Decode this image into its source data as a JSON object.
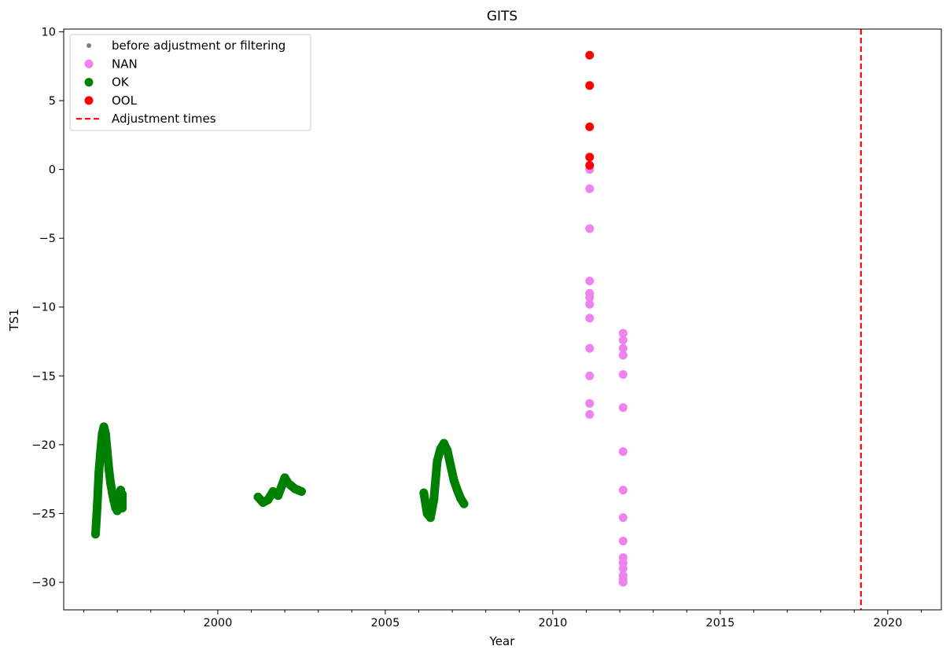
{
  "chart_data": {
    "type": "scatter",
    "title": "GITS",
    "xlabel": "Year",
    "ylabel": "TS1",
    "xlim": [
      1995.4,
      2021.6
    ],
    "ylim": [
      -32,
      10.2
    ],
    "xticks": [
      2000,
      2005,
      2010,
      2015,
      2020
    ],
    "xtick_labels": [
      "2000",
      "2005",
      "2010",
      "2015",
      "2020"
    ],
    "yticks": [
      10,
      5,
      0,
      -5,
      -10,
      -15,
      -20,
      -25,
      -30
    ],
    "ytick_labels": [
      "10",
      "5",
      "0",
      "−5",
      "−10",
      "−15",
      "−20",
      "−25",
      "−30"
    ],
    "minor_xtick_step": 1,
    "grid": false,
    "legend_position": "upper-left",
    "legend": [
      {
        "label": "before adjustment or filtering",
        "marker": "small-dot",
        "color": "#808080"
      },
      {
        "label": "NAN",
        "marker": "dot",
        "color": "#ee82ee"
      },
      {
        "label": "OK",
        "marker": "dot",
        "color": "#008000"
      },
      {
        "label": "OOL",
        "marker": "dot",
        "color": "#ff0000"
      },
      {
        "label": "Adjustment times",
        "marker": "dashed-line",
        "color": "#ff0000"
      }
    ],
    "series": [
      {
        "name": "OK",
        "color": "#008000",
        "x": [
          1996.35,
          1996.4,
          1996.45,
          1996.5,
          1996.55,
          1996.6,
          1996.65,
          1996.7,
          1996.75,
          1996.8,
          1996.85,
          1996.9,
          1996.95,
          1997.0,
          1997.05,
          1997.1,
          1997.15,
          1997.15,
          2001.2,
          2001.35,
          2001.5,
          2001.65,
          2001.8,
          2002.0,
          2002.1,
          2002.2,
          2002.3,
          2002.4,
          2002.5,
          2006.15,
          2006.25,
          2006.35,
          2006.45,
          2006.55,
          2006.65,
          2006.75,
          2006.85,
          2006.95,
          2007.05,
          2007.15,
          2007.25,
          2007.35
        ],
        "y": [
          -26.5,
          -24.5,
          -22.0,
          -20.5,
          -19.2,
          -18.7,
          -19.2,
          -20.5,
          -21.8,
          -22.8,
          -23.5,
          -24.1,
          -24.6,
          -24.8,
          -24.2,
          -23.3,
          -24.6,
          -23.6,
          -23.8,
          -24.2,
          -24.0,
          -23.4,
          -23.7,
          -22.4,
          -22.8,
          -23.0,
          -23.2,
          -23.3,
          -23.4,
          -23.5,
          -25.0,
          -25.3,
          -24.0,
          -21.2,
          -20.3,
          -19.9,
          -20.4,
          -21.5,
          -22.6,
          -23.3,
          -23.9,
          -24.3
        ]
      },
      {
        "name": "NAN",
        "color": "#ee82ee",
        "x": [
          2011.1,
          2011.1,
          2011.1,
          2011.1,
          2011.1,
          2011.1,
          2011.1,
          2011.1,
          2011.1,
          2011.1,
          2011.1,
          2011.1,
          2012.1,
          2012.1,
          2012.1,
          2012.1,
          2012.1,
          2012.1,
          2012.1,
          2012.1,
          2012.1,
          2012.1,
          2012.1,
          2012.1,
          2012.1,
          2012.1,
          2012.1,
          2012.1
        ],
        "y": [
          0.0,
          -1.4,
          -4.3,
          -8.1,
          -9.0,
          -9.3,
          -9.8,
          -10.8,
          -13.0,
          -15.0,
          -17.0,
          -17.8,
          -11.9,
          -12.4,
          -13.0,
          -13.5,
          -14.9,
          -17.3,
          -20.5,
          -23.3,
          -25.3,
          -27.0,
          -28.2,
          -28.6,
          -29.0,
          -29.5,
          -29.8,
          -30.0
        ]
      },
      {
        "name": "OOL",
        "color": "#ff0000",
        "x": [
          2011.1,
          2011.1,
          2011.1,
          2011.1,
          2011.1
        ],
        "y": [
          8.3,
          6.1,
          3.1,
          0.9,
          0.3
        ]
      }
    ],
    "adjustment_times": [
      2019.2
    ],
    "adjustment_color": "#ff0000"
  }
}
